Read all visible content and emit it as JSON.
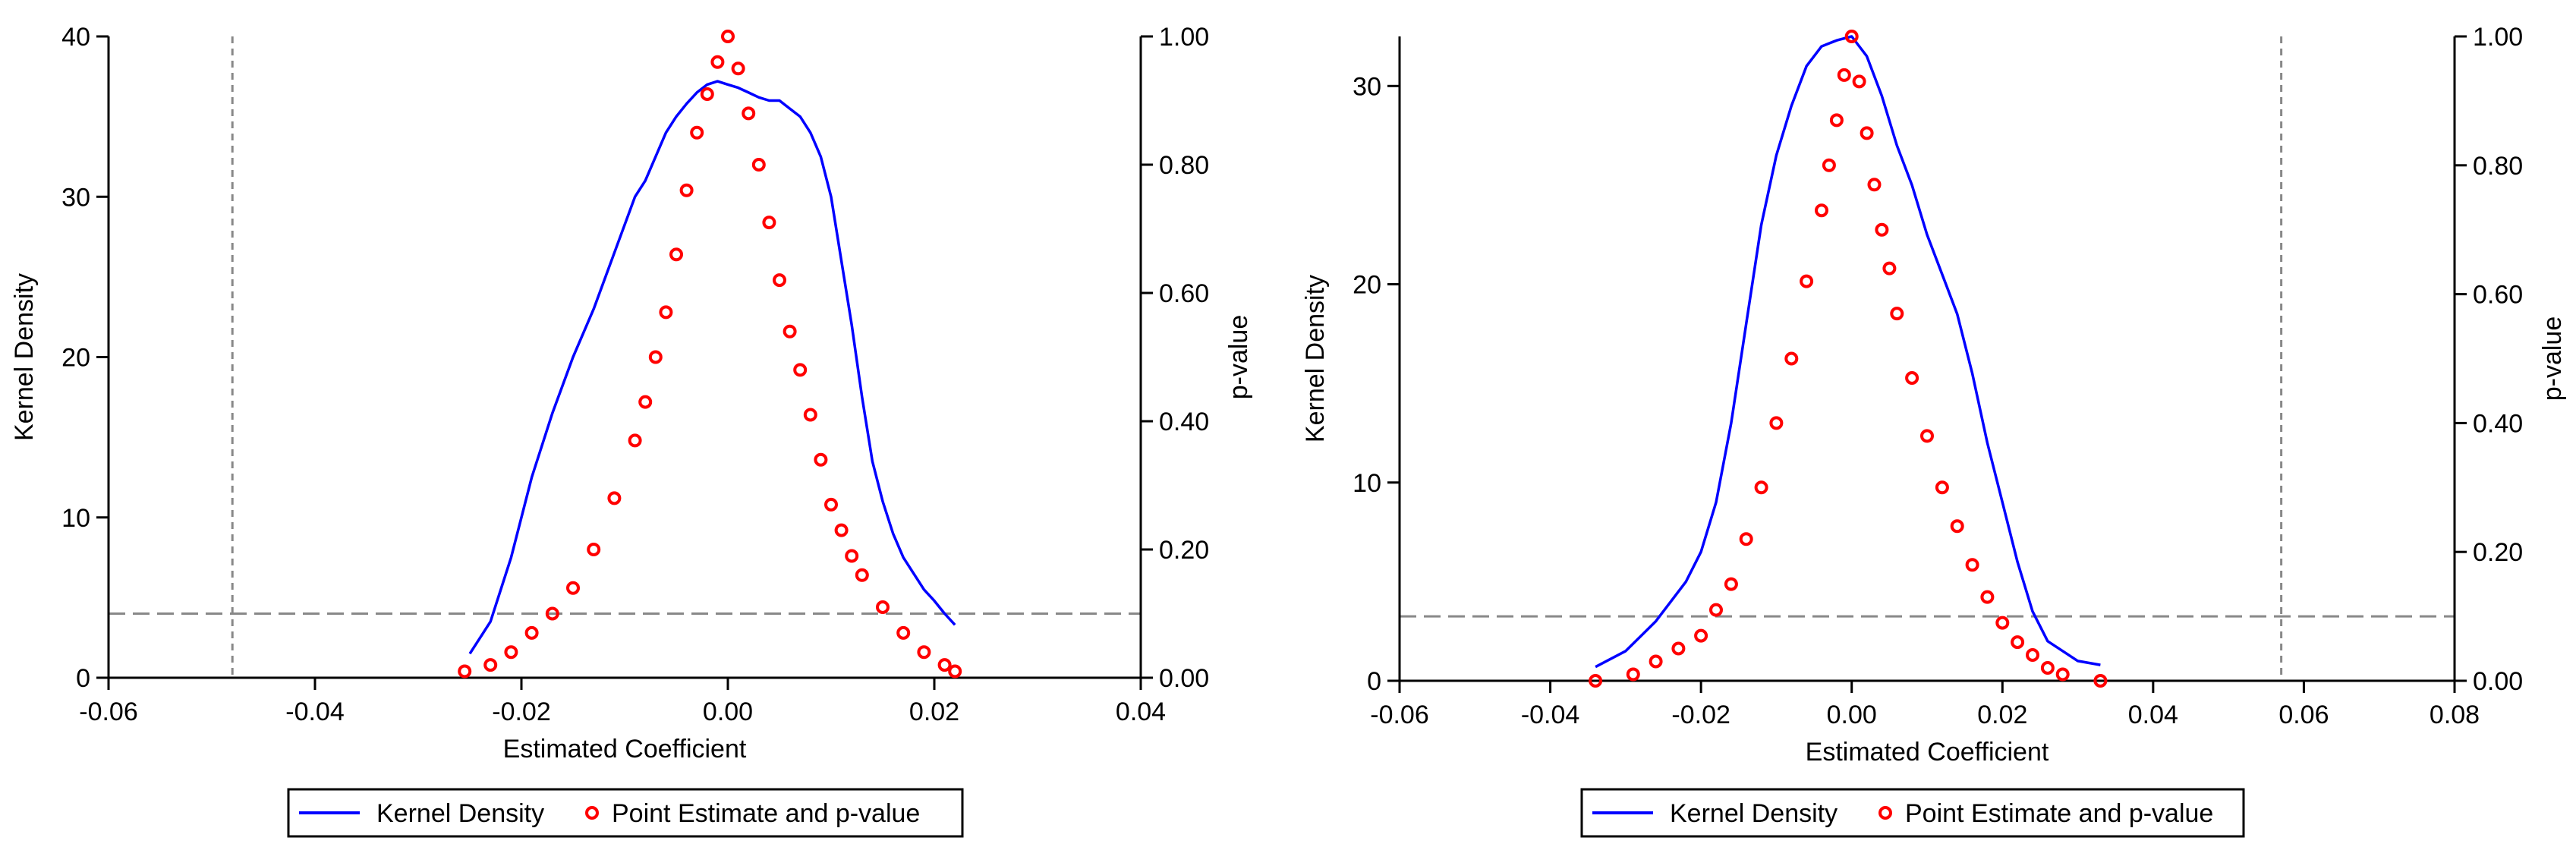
{
  "chart_data": [
    {
      "type": "line+scatter",
      "title": "",
      "xlabel": "Estimated Coefficient",
      "ylabel_left": "Kernel Density",
      "ylabel_right": "p-value",
      "xlim": [
        -0.06,
        0.04
      ],
      "ylim_left": [
        0,
        40
      ],
      "ylim_right": [
        0,
        1
      ],
      "x_ticks": [
        -0.06,
        -0.04,
        -0.02,
        0.0,
        0.02,
        0.04
      ],
      "x_tick_labels": [
        "-0.06",
        "-0.04",
        "-0.02",
        "0.00",
        "0.02",
        "0.04"
      ],
      "y_left_ticks": [
        0,
        10,
        20,
        30,
        40
      ],
      "y_left_tick_labels": [
        "0",
        "10",
        "20",
        "30",
        "40"
      ],
      "y_right_ticks": [
        0,
        0.2,
        0.4,
        0.6,
        0.8,
        1.0
      ],
      "y_right_tick_labels": [
        "0.00",
        "0.20",
        "0.40",
        "0.60",
        "0.80",
        "1.00"
      ],
      "reference_lines": {
        "vertical_x": -0.048,
        "horizontal_p": 0.1
      },
      "legend": {
        "position": "bottom",
        "entries": [
          "Kernel Density",
          "Point Estimate and p-value"
        ]
      },
      "series": [
        {
          "name": "Kernel Density",
          "kind": "line",
          "color": "#0000ff",
          "x": [
            -0.025,
            -0.023,
            -0.021,
            -0.019,
            -0.017,
            -0.015,
            -0.013,
            -0.011,
            -0.009,
            -0.008,
            -0.007,
            -0.006,
            -0.005,
            -0.004,
            -0.003,
            -0.002,
            -0.001,
            0.0,
            0.001,
            0.002,
            0.003,
            0.004,
            0.005,
            0.006,
            0.007,
            0.008,
            0.009,
            0.01,
            0.011,
            0.012,
            0.013,
            0.014,
            0.015,
            0.016,
            0.017,
            0.018,
            0.019,
            0.02,
            0.021,
            0.022
          ],
          "y": [
            1.5,
            3.5,
            7.5,
            12.5,
            16.5,
            20.0,
            23.0,
            26.5,
            30.0,
            31.0,
            32.5,
            34.0,
            35.0,
            35.8,
            36.5,
            37.0,
            37.2,
            37.0,
            36.8,
            36.5,
            36.2,
            36.0,
            36.0,
            35.5,
            35.0,
            34.0,
            32.5,
            30.0,
            26.0,
            22.0,
            17.5,
            13.5,
            11.0,
            9.0,
            7.5,
            6.5,
            5.5,
            4.8,
            4.0,
            3.3
          ]
        },
        {
          "name": "Point Estimate and p-value",
          "kind": "scatter",
          "color": "#ff0000",
          "x": [
            -0.0255,
            -0.023,
            -0.021,
            -0.019,
            -0.017,
            -0.015,
            -0.013,
            -0.011,
            -0.009,
            -0.008,
            -0.007,
            -0.006,
            -0.005,
            -0.004,
            -0.003,
            -0.002,
            -0.001,
            0.0,
            0.001,
            0.002,
            0.003,
            0.004,
            0.005,
            0.006,
            0.007,
            0.008,
            0.009,
            0.01,
            0.011,
            0.012,
            0.013,
            0.015,
            0.017,
            0.019,
            0.021,
            0.022
          ],
          "p": [
            0.01,
            0.02,
            0.04,
            0.07,
            0.1,
            0.14,
            0.2,
            0.28,
            0.37,
            0.43,
            0.5,
            0.57,
            0.66,
            0.76,
            0.85,
            0.91,
            0.96,
            1.0,
            0.95,
            0.88,
            0.8,
            0.71,
            0.62,
            0.54,
            0.48,
            0.41,
            0.34,
            0.27,
            0.23,
            0.19,
            0.16,
            0.11,
            0.07,
            0.04,
            0.02,
            0.01
          ]
        }
      ]
    },
    {
      "type": "line+scatter",
      "title": "",
      "xlabel": "Estimated Coefficient",
      "ylabel_left": "Kernel Density",
      "ylabel_right": "p-value",
      "xlim": [
        -0.06,
        0.08
      ],
      "ylim_left": [
        0,
        32.5
      ],
      "ylim_right": [
        0,
        1
      ],
      "x_ticks": [
        -0.06,
        -0.04,
        -0.02,
        0.0,
        0.02,
        0.04,
        0.06,
        0.08
      ],
      "x_tick_labels": [
        "-0.06",
        "-0.04",
        "-0.02",
        "0.00",
        "0.02",
        "0.04",
        "0.06",
        "0.08"
      ],
      "y_left_ticks": [
        0,
        10,
        20,
        30
      ],
      "y_left_tick_labels": [
        "0",
        "10",
        "20",
        "30"
      ],
      "y_right_ticks": [
        0,
        0.2,
        0.4,
        0.6,
        0.8,
        1.0
      ],
      "y_right_tick_labels": [
        "0.00",
        "0.20",
        "0.40",
        "0.60",
        "0.80",
        "1.00"
      ],
      "reference_lines": {
        "vertical_x": 0.057,
        "horizontal_p": 0.1
      },
      "legend": {
        "position": "bottom",
        "entries": [
          "Kernel Density",
          "Point Estimate and p-value"
        ]
      },
      "series": [
        {
          "name": "Kernel Density",
          "kind": "line",
          "color": "#0000ff",
          "x": [
            -0.034,
            -0.03,
            -0.026,
            -0.022,
            -0.02,
            -0.018,
            -0.016,
            -0.014,
            -0.012,
            -0.01,
            -0.008,
            -0.006,
            -0.004,
            -0.002,
            0.0,
            0.002,
            0.004,
            0.006,
            0.008,
            0.01,
            0.012,
            0.014,
            0.016,
            0.018,
            0.02,
            0.022,
            0.024,
            0.026,
            0.028,
            0.03,
            0.033
          ],
          "y": [
            0.7,
            1.5,
            3.0,
            5.0,
            6.5,
            9.0,
            13.0,
            18.0,
            23.0,
            26.5,
            29.0,
            31.0,
            32.0,
            32.3,
            32.5,
            31.5,
            29.5,
            27.0,
            25.0,
            22.5,
            20.5,
            18.5,
            15.5,
            12.0,
            9.0,
            6.0,
            3.5,
            2.0,
            1.5,
            1.0,
            0.8
          ]
        },
        {
          "name": "Point Estimate and p-value",
          "kind": "scatter",
          "color": "#ff0000",
          "x": [
            -0.034,
            -0.029,
            -0.026,
            -0.023,
            -0.02,
            -0.018,
            -0.016,
            -0.014,
            -0.012,
            -0.01,
            -0.008,
            -0.006,
            -0.004,
            -0.003,
            -0.002,
            -0.001,
            0.0,
            0.001,
            0.002,
            0.003,
            0.004,
            0.005,
            0.006,
            0.008,
            0.01,
            0.012,
            0.014,
            0.016,
            0.018,
            0.02,
            0.022,
            0.024,
            0.026,
            0.028,
            0.033
          ],
          "p": [
            0.0,
            0.01,
            0.03,
            0.05,
            0.07,
            0.11,
            0.15,
            0.22,
            0.3,
            0.4,
            0.5,
            0.62,
            0.73,
            0.8,
            0.87,
            0.94,
            1.0,
            0.93,
            0.85,
            0.77,
            0.7,
            0.64,
            0.57,
            0.47,
            0.38,
            0.3,
            0.24,
            0.18,
            0.13,
            0.09,
            0.06,
            0.04,
            0.02,
            0.01,
            0.0
          ]
        }
      ]
    }
  ]
}
